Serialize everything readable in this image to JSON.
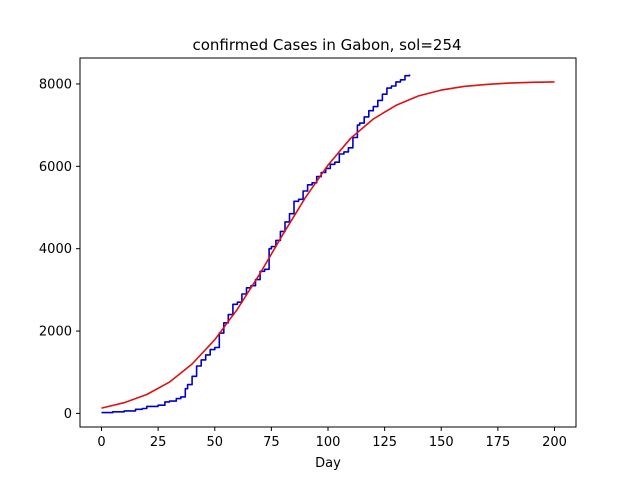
{
  "chart_data": {
    "type": "line",
    "title": "confirmed Cases in Gabon, sol=254",
    "xlabel": "Day",
    "ylabel": "",
    "xlim": [
      -9.5,
      209.5
    ],
    "ylim": [
      -330,
      8630
    ],
    "xticks": [
      0,
      25,
      50,
      75,
      100,
      125,
      150,
      175,
      200
    ],
    "yticks": [
      0,
      2000,
      4000,
      6000,
      8000
    ],
    "grid": false,
    "series": [
      {
        "color": "#0000cc",
        "style": "step",
        "x": [
          0,
          5,
          10,
          15,
          18,
          20,
          25,
          28,
          30,
          33,
          35,
          37,
          38,
          40,
          42,
          44,
          46,
          48,
          50,
          52,
          54,
          56,
          58,
          60,
          62,
          64,
          66,
          68,
          70,
          72,
          74,
          75,
          77,
          79,
          81,
          83,
          85,
          87,
          89,
          91,
          93,
          95,
          97,
          99,
          101,
          103,
          105,
          107,
          109,
          111,
          113,
          114,
          116,
          118,
          120,
          122,
          124,
          126,
          128,
          130,
          132,
          134,
          136
        ],
        "y": [
          20,
          40,
          60,
          100,
          120,
          170,
          200,
          280,
          300,
          360,
          400,
          600,
          700,
          900,
          1150,
          1300,
          1420,
          1550,
          1600,
          1950,
          2200,
          2400,
          2650,
          2700,
          2900,
          3050,
          3100,
          3250,
          3450,
          3500,
          4000,
          4050,
          4200,
          4420,
          4650,
          4850,
          5150,
          5200,
          5400,
          5550,
          5600,
          5750,
          5850,
          5950,
          6050,
          6100,
          6300,
          6350,
          6450,
          6700,
          7000,
          7050,
          7200,
          7350,
          7450,
          7600,
          7750,
          7900,
          7950,
          8050,
          8100,
          8200,
          8230
        ]
      },
      {
        "color": "#dd1111",
        "style": "line",
        "x": [
          0,
          10,
          20,
          30,
          40,
          50,
          60,
          70,
          80,
          90,
          100,
          110,
          120,
          130,
          140,
          150,
          160,
          170,
          180,
          190,
          200
        ],
        "y": [
          130,
          260,
          460,
          760,
          1200,
          1790,
          2530,
          3400,
          4340,
          5240,
          6030,
          6680,
          7150,
          7480,
          7710,
          7850,
          7940,
          7990,
          8020,
          8040,
          8050
        ]
      }
    ]
  }
}
